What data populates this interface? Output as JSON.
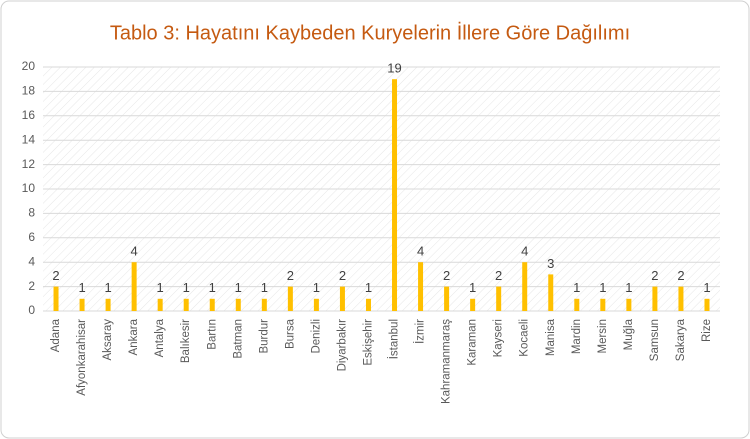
{
  "chart_data": {
    "type": "bar",
    "title": "Tablo 3: Hayatını Kaybeden Kuryelerin İllere Göre Dağılımı",
    "categories": [
      "Adana",
      "Afyonkarahisar",
      "Aksaray",
      "Ankara",
      "Antalya",
      "Balıkesir",
      "Bartın",
      "Batman",
      "Burdur",
      "Bursa",
      "Denizli",
      "Diyarbakır",
      "Eskişehir",
      "İstanbul",
      "İzmir",
      "Kahramanmaraş",
      "Karaman",
      "Kayseri",
      "Kocaeli",
      "Manisa",
      "Mardin",
      "Mersin",
      "Muğla",
      "Samsun",
      "Sakarya",
      "Rize"
    ],
    "values": [
      2,
      1,
      1,
      4,
      1,
      1,
      1,
      1,
      1,
      2,
      1,
      2,
      1,
      19,
      4,
      2,
      1,
      2,
      4,
      3,
      1,
      1,
      1,
      2,
      2,
      1
    ],
    "color": "#ffc000",
    "ylim": [
      0,
      20
    ],
    "yticks": [
      0,
      2,
      4,
      6,
      8,
      10,
      12,
      14,
      16,
      18,
      20
    ],
    "grid": true
  }
}
